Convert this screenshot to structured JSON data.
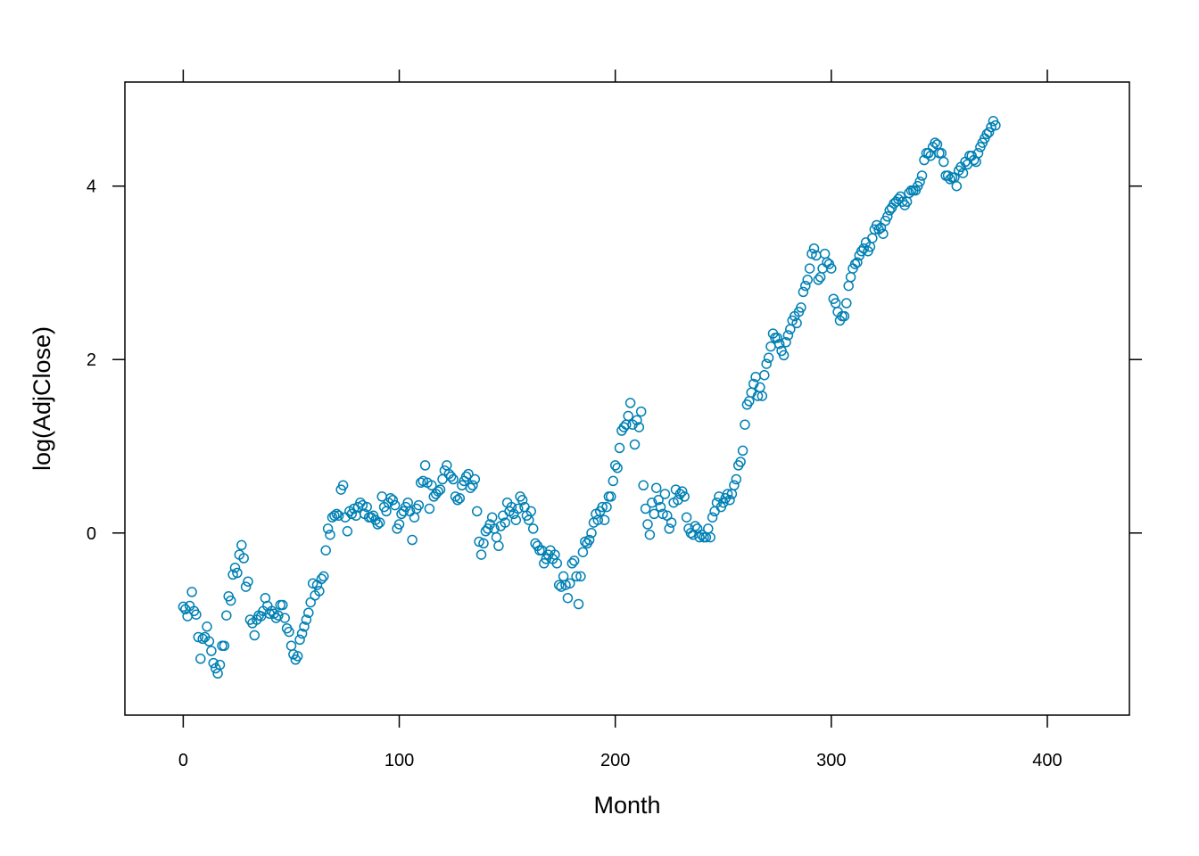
{
  "chart_data": {
    "type": "scatter",
    "xlabel": "Month",
    "ylabel": "log(AdjClose)",
    "xlim": [
      -27,
      438
    ],
    "ylim": [
      -2.1,
      5.2
    ],
    "xticks": [
      0,
      100,
      200,
      300,
      400
    ],
    "yticks": [
      0,
      2,
      4
    ],
    "grid": false,
    "marker": "open-circle",
    "point_color": "#0080b4",
    "series": [
      {
        "y": [
          -0.85,
          -0.88,
          -0.96,
          -0.84,
          -0.68,
          -0.9,
          -0.94,
          -1.2,
          -1.45,
          -1.22,
          -1.2,
          -1.08,
          -1.25,
          -1.36,
          -1.5,
          -1.56,
          -1.62,
          -1.52,
          -1.3,
          -1.3,
          -0.95,
          -0.73,
          -0.78,
          -0.48,
          -0.4,
          -0.46,
          -0.25,
          -0.14,
          -0.29,
          -0.62,
          -0.56,
          -1.0,
          -1.04,
          -1.18,
          -1.0,
          -0.95,
          -0.96,
          -0.9,
          -0.75,
          -0.84,
          -0.93,
          -0.9,
          -0.93,
          -0.98,
          -0.95,
          -0.83,
          -0.83,
          -0.98,
          -1.1,
          -1.14,
          -1.3,
          -1.4,
          -1.46,
          -1.42,
          -1.23,
          -1.16,
          -1.08,
          -1.0,
          -0.92,
          -0.8,
          -0.58,
          -0.72,
          -0.6,
          -0.67,
          -0.53,
          -0.5,
          -0.2,
          0.05,
          -0.02,
          0.18,
          0.2,
          0.22,
          0.2,
          0.5,
          0.55,
          0.18,
          0.02,
          0.25,
          0.22,
          0.28,
          0.2,
          0.3,
          0.35,
          0.32,
          0.22,
          0.3,
          0.18,
          0.18,
          0.2,
          0.15,
          0.1,
          0.12,
          0.42,
          0.3,
          0.25,
          0.35,
          0.4,
          0.38,
          0.32,
          0.05,
          0.1,
          0.22,
          0.25,
          0.3,
          0.35,
          0.25,
          -0.08,
          0.18,
          0.28,
          0.32,
          0.58,
          0.6,
          0.78,
          0.58,
          0.28,
          0.55,
          0.42,
          0.45,
          0.48,
          0.5,
          0.62,
          0.72,
          0.78,
          0.68,
          0.65,
          0.62,
          0.42,
          0.38,
          0.4,
          0.55,
          0.6,
          0.65,
          0.68,
          0.52,
          0.55,
          0.62,
          0.25,
          -0.1,
          -0.25,
          -0.12,
          0.02,
          0.05,
          0.1,
          0.18,
          0.05,
          -0.05,
          -0.15,
          0.08,
          0.2,
          0.12,
          0.35,
          0.25,
          0.3,
          0.22,
          0.15,
          0.28,
          0.42,
          0.38,
          0.3,
          0.2,
          0.15,
          0.25,
          0.05,
          -0.12,
          -0.15,
          -0.2,
          -0.2,
          -0.35,
          -0.3,
          -0.25,
          -0.2,
          -0.3,
          -0.25,
          -0.35,
          -0.6,
          -0.62,
          -0.5,
          -0.6,
          -0.75,
          -0.58,
          -0.35,
          -0.32,
          -0.5,
          -0.82,
          -0.5,
          -0.22,
          -0.1,
          -0.12,
          -0.08,
          0.0,
          0.12,
          0.22,
          0.15,
          0.25,
          0.3,
          0.15,
          0.3,
          0.42,
          0.42,
          0.6,
          0.78,
          0.75,
          0.98,
          1.18,
          1.22,
          1.25,
          1.35,
          1.5,
          1.25,
          1.02,
          1.3,
          1.22,
          1.4,
          0.55,
          0.28,
          0.1,
          -0.02,
          0.35,
          0.22,
          0.52,
          0.38,
          0.3,
          0.22,
          0.45,
          0.2,
          0.05,
          0.12,
          0.35,
          0.5,
          0.38,
          0.45,
          0.48,
          0.42,
          0.18,
          0.05,
          0.0,
          -0.02,
          0.08,
          0.05,
          -0.05,
          -0.02,
          -0.05,
          -0.05,
          0.05,
          -0.05,
          0.18,
          0.25,
          0.35,
          0.42,
          0.3,
          0.35,
          0.4,
          0.45,
          0.38,
          0.45,
          0.55,
          0.62,
          0.78,
          0.82,
          0.95,
          1.25,
          1.48,
          1.52,
          1.62,
          1.72,
          1.8,
          1.58,
          1.68,
          1.58,
          1.82,
          1.95,
          2.02,
          2.15,
          2.3,
          2.25,
          2.25,
          2.18,
          2.1,
          2.05,
          2.2,
          2.28,
          2.35,
          2.45,
          2.5,
          2.42,
          2.55,
          2.6,
          2.78,
          2.85,
          2.92,
          3.05,
          3.22,
          3.28,
          3.2,
          2.92,
          2.95,
          3.05,
          3.22,
          3.12,
          3.1,
          3.05,
          2.7,
          2.65,
          2.55,
          2.45,
          2.5,
          2.5,
          2.65,
          2.85,
          2.95,
          3.05,
          3.1,
          3.12,
          3.2,
          3.25,
          3.28,
          3.35,
          3.25,
          3.3,
          3.4,
          3.5,
          3.55,
          3.5,
          3.52,
          3.45,
          3.6,
          3.65,
          3.72,
          3.75,
          3.8,
          3.82,
          3.85,
          3.88,
          3.82,
          3.78,
          3.82,
          3.92,
          3.95,
          3.95,
          3.95,
          4.0,
          4.05,
          4.12,
          4.3,
          4.38,
          4.38,
          4.35,
          4.45,
          4.5,
          4.48,
          4.38,
          4.38,
          4.28,
          4.12,
          4.12,
          4.08,
          4.1,
          4.1,
          4.0,
          4.18,
          4.22,
          4.15,
          4.28,
          4.25,
          4.35,
          4.35,
          4.3,
          4.28,
          4.38,
          4.45,
          4.5,
          4.55,
          4.6,
          4.62,
          4.68,
          4.75,
          4.7
        ]
      }
    ]
  }
}
